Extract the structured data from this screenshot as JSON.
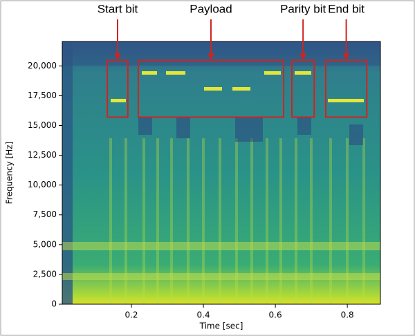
{
  "chart_data": {
    "type": "spectrogram",
    "xlabel": "Time [sec]",
    "ylabel": "Frequency [Hz]",
    "xlim": [
      0.0077,
      0.892
    ],
    "xticks": [
      0.2,
      0.4,
      0.6,
      0.8
    ],
    "ylim": [
      0,
      22050
    ],
    "yticks": [
      0,
      {
        "value": 2500,
        "label": "2,500"
      },
      {
        "value": 5000,
        "label": "5,000"
      },
      {
        "value": 7500,
        "label": "7,500"
      },
      {
        "value": 10000,
        "label": "10,000"
      },
      {
        "value": 12500,
        "label": "12,500"
      },
      {
        "value": 15000,
        "label": "15,000"
      },
      {
        "value": 17500,
        "label": "17,500"
      },
      {
        "value": 20000,
        "label": "20,000"
      }
    ],
    "annotation_color": "#d0241f",
    "annotations": [
      {
        "text": "Start bit",
        "x": [
          0.133,
          0.19
        ],
        "y": [
          15700,
          20465
        ]
      },
      {
        "text": "Payload",
        "x": [
          0.219,
          0.623
        ],
        "y": [
          15700,
          20465
        ]
      },
      {
        "text": "Parity bit",
        "x": [
          0.646,
          0.708
        ],
        "y": [
          15700,
          20465
        ]
      },
      {
        "text": "End bit",
        "x": [
          0.74,
          0.854
        ],
        "y": [
          15700,
          20465
        ]
      }
    ]
  }
}
